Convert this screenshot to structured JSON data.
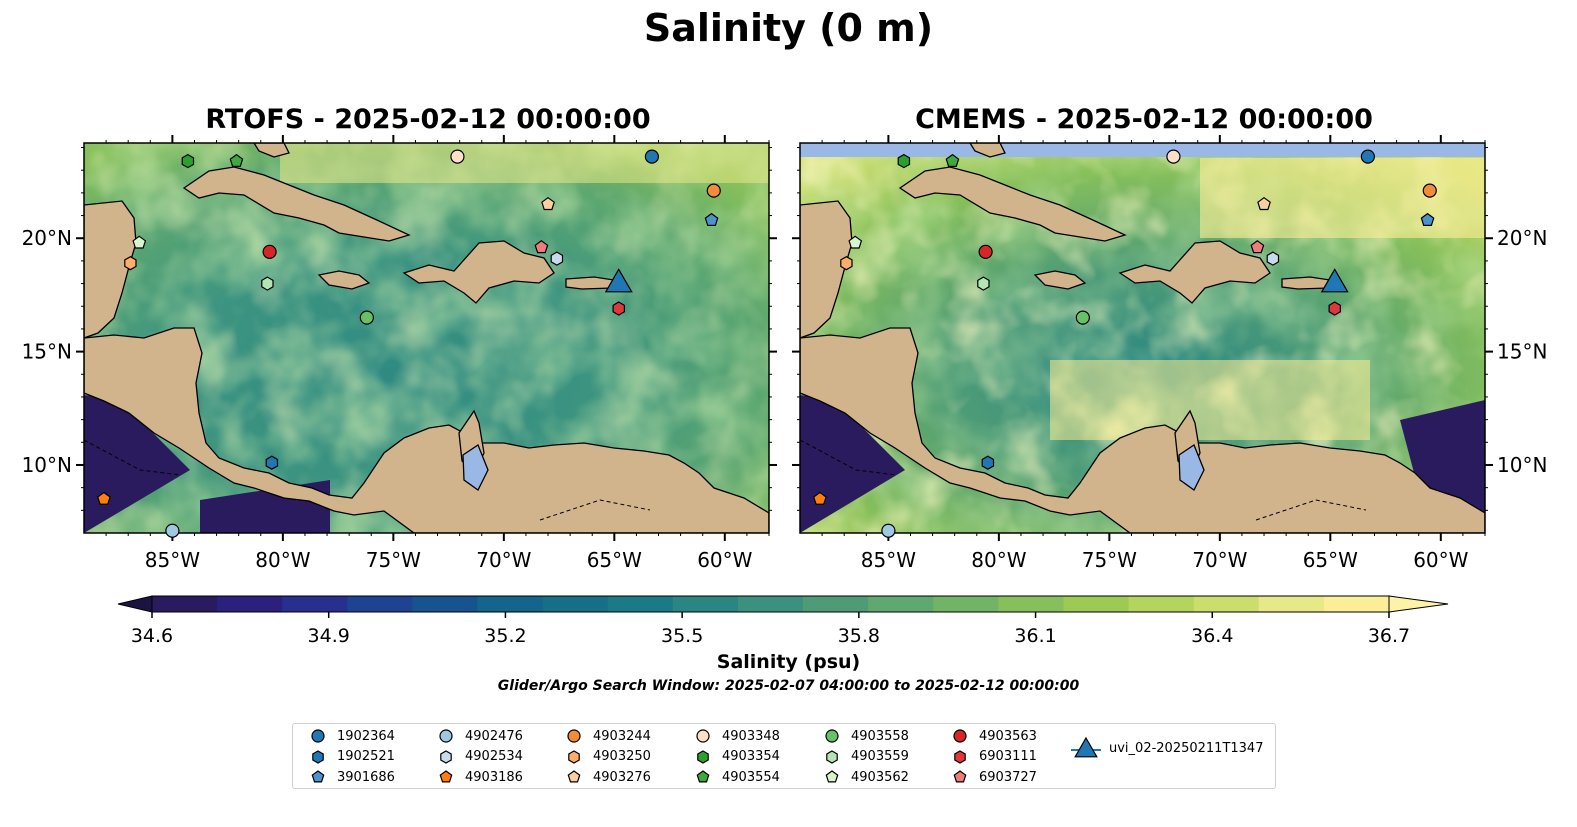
{
  "title": "Salinity (0 m)",
  "panels": [
    {
      "title": "RTOFS - 2025-02-12 00:00:00"
    },
    {
      "title": "CMEMS - 2025-02-12 00:00:00"
    }
  ],
  "map": {
    "lon_range": [
      -89,
      -58
    ],
    "lat_range": [
      7,
      24.2
    ],
    "lon_ticks": [
      {
        "value": -85,
        "label": "85°W"
      },
      {
        "value": -80,
        "label": "80°W"
      },
      {
        "value": -75,
        "label": "75°W"
      },
      {
        "value": -70,
        "label": "70°W"
      },
      {
        "value": -65,
        "label": "65°W"
      },
      {
        "value": -60,
        "label": "60°W"
      }
    ],
    "lat_ticks": [
      {
        "value": 10,
        "label": "10°N"
      },
      {
        "value": 15,
        "label": "15°N"
      },
      {
        "value": 20,
        "label": "20°N"
      }
    ],
    "land_color": "#d2b48c",
    "lake_color": "#9ab8e6"
  },
  "colorbar": {
    "label": "Salinity (psu)",
    "min": 34.6,
    "max": 36.7,
    "ticks": [
      "34.6",
      "34.9",
      "35.2",
      "35.5",
      "35.8",
      "36.1",
      "36.4",
      "36.7"
    ],
    "colors": [
      "#2a1b5e",
      "#2b207e",
      "#28308f",
      "#1f4393",
      "#17548f",
      "#15648b",
      "#176f87",
      "#1b7a85",
      "#2a8683",
      "#3c917e",
      "#4e9c77",
      "#5fa86f",
      "#72b466",
      "#86bf5b",
      "#9cca55",
      "#b3d45e",
      "#cbdd6d",
      "#e7e886",
      "#fbee96"
    ],
    "extend": "both"
  },
  "search_window": "Glider/Argo Search Window: 2025-02-07 04:00:00 to 2025-02-12 00:00:00",
  "floats": [
    {
      "id": "1902364",
      "marker": "circle",
      "color": "#1f77b4",
      "lon": -63.3,
      "lat": 23.6
    },
    {
      "id": "1902521",
      "marker": "hexagon",
      "color": "#1f77b4",
      "lon": -80.5,
      "lat": 10.1
    },
    {
      "id": "3901686",
      "marker": "pentagon",
      "color": "#4b92cf",
      "lon": -60.6,
      "lat": 20.8
    },
    {
      "id": "4902476",
      "marker": "circle",
      "color": "#9ecae1",
      "lon": -85.0,
      "lat": 7.1
    },
    {
      "id": "4902534",
      "marker": "hexagon",
      "color": "#c6dbef",
      "lon": -67.6,
      "lat": 19.1
    },
    {
      "id": "4903186",
      "marker": "pentagon",
      "color": "#ff7f0e",
      "lon": -88.1,
      "lat": 8.5
    },
    {
      "id": "4903244",
      "marker": "circle",
      "color": "#f28c38",
      "lon": -60.5,
      "lat": 22.1
    },
    {
      "id": "4903250",
      "marker": "hexagon",
      "color": "#fdae6b",
      "lon": -86.9,
      "lat": 18.9
    },
    {
      "id": "4903276",
      "marker": "pentagon",
      "color": "#fdd0a2",
      "lon": -68.0,
      "lat": 21.5
    },
    {
      "id": "4903348",
      "marker": "circle",
      "color": "#fde0c5",
      "lon": -72.1,
      "lat": 23.6
    },
    {
      "id": "4903354",
      "marker": "hexagon",
      "color": "#2ca02c",
      "lon": -84.3,
      "lat": 23.4
    },
    {
      "id": "4903554",
      "marker": "pentagon",
      "color": "#3cab3c",
      "lon": -82.1,
      "lat": 23.4
    },
    {
      "id": "4903558",
      "marker": "circle",
      "color": "#66c266",
      "lon": -76.2,
      "lat": 16.5
    },
    {
      "id": "4903559",
      "marker": "hexagon",
      "color": "#b5e5b5",
      "lon": -80.7,
      "lat": 18.0
    },
    {
      "id": "4903562",
      "marker": "pentagon",
      "color": "#d7f5cf",
      "lon": -86.5,
      "lat": 19.8
    },
    {
      "id": "4903563",
      "marker": "circle",
      "color": "#d62728",
      "lon": -80.6,
      "lat": 19.4
    },
    {
      "id": "6903111",
      "marker": "hexagon",
      "color": "#e0383a",
      "lon": -64.8,
      "lat": 16.9
    },
    {
      "id": "6903727",
      "marker": "pentagon",
      "color": "#f07b7b",
      "lon": -68.3,
      "lat": 19.6
    }
  ],
  "glider": {
    "id": "uvi_02-20250211T1347",
    "marker": "triangle",
    "color": "#1f77b4",
    "lon": -64.8,
    "lat": 18.1
  }
}
